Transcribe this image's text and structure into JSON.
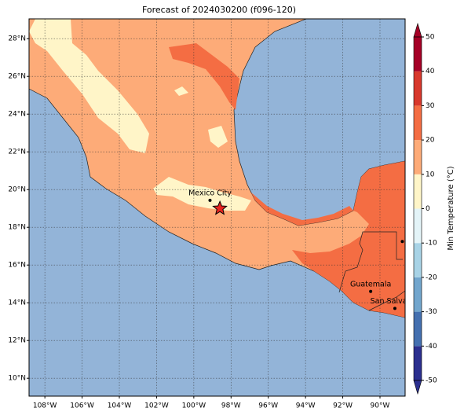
{
  "map": {
    "title": "Forecast of 2024030200 (f096-120)",
    "xlim": [
      -108.85,
      -88.65
    ],
    "ylim": [
      9.05,
      29.05
    ],
    "xticks": [
      {
        "value": -108,
        "label": "108°W"
      },
      {
        "value": -106,
        "label": "106°W"
      },
      {
        "value": -104,
        "label": "104°W"
      },
      {
        "value": -102,
        "label": "102°W"
      },
      {
        "value": -100,
        "label": "100°W"
      },
      {
        "value": -98,
        "label": "98°W"
      },
      {
        "value": -96,
        "label": "96°W"
      },
      {
        "value": -94,
        "label": "94°W"
      },
      {
        "value": -92,
        "label": "92°W"
      },
      {
        "value": -90,
        "label": "90°W"
      }
    ],
    "yticks": [
      {
        "value": 10,
        "label": "10°N"
      },
      {
        "value": 12,
        "label": "12°N"
      },
      {
        "value": 14,
        "label": "14°N"
      },
      {
        "value": 16,
        "label": "16°N"
      },
      {
        "value": 18,
        "label": "18°N"
      },
      {
        "value": 20,
        "label": "20°N"
      },
      {
        "value": 22,
        "label": "22°N"
      },
      {
        "value": 24,
        "label": "24°N"
      },
      {
        "value": 26,
        "label": "26°N"
      },
      {
        "value": 28,
        "label": "28°N"
      }
    ],
    "grid": true,
    "cities": [
      {
        "name": "Mexico City",
        "lon": -99.13,
        "lat": 19.43
      },
      {
        "name": "Guatemala",
        "lon": -90.5,
        "lat": 14.6
      },
      {
        "name": "San Salvador",
        "lon": -89.2,
        "lat": 13.7
      }
    ],
    "markers": [
      {
        "lon": -88.8,
        "lat": 17.25
      }
    ],
    "star": {
      "lon": -98.6,
      "lat": 19.0
    },
    "colorbar": {
      "label": "Min Temperature (°C)",
      "ticks": [
        -50,
        -40,
        -30,
        -20,
        -10,
        0,
        10,
        20,
        30,
        40,
        50
      ],
      "colors": [
        "#2b2f8f",
        "#4470b0",
        "#72a6cd",
        "#a8d3e6",
        "#e4f4f8",
        "#fff5c8",
        "#fdab78",
        "#f46d43",
        "#d8382c",
        "#a50026"
      ]
    }
  }
}
